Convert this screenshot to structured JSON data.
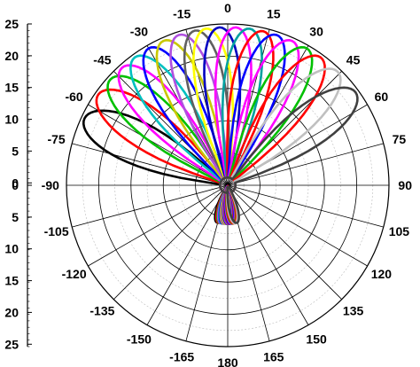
{
  "chart_data": {
    "type": "polar-line",
    "title": "",
    "radial_axis": {
      "range": [
        0,
        25
      ],
      "tick_labels": [
        "25",
        "20",
        "15",
        "10",
        "5",
        "0",
        "0",
        "5",
        "10",
        "15",
        "20",
        "25"
      ]
    },
    "angular_axis": {
      "labels": [
        "0",
        "15",
        "30",
        "45",
        "60",
        "75",
        "90",
        "105",
        "120",
        "135",
        "150",
        "165",
        "180",
        "-165",
        "-150",
        "-135",
        "-120",
        "-105",
        "-90",
        "-75",
        "-60",
        "-45",
        "-30",
        "-15"
      ],
      "grid": true
    },
    "series": [
      {
        "color": "#000000",
        "steer_deg": -65,
        "peak": 24.5,
        "back": 6
      },
      {
        "color": "#ff0000",
        "steer_deg": -55,
        "peak": 24.5,
        "back": 6
      },
      {
        "color": "#00c000",
        "steer_deg": -48,
        "peak": 24.5,
        "back": 6
      },
      {
        "color": "#ff00ff",
        "steer_deg": -42,
        "peak": 24.5,
        "back": 6
      },
      {
        "color": "#00c0c0",
        "steer_deg": -36,
        "peak": 24.5,
        "back": 6
      },
      {
        "color": "#0000ff",
        "steer_deg": -30,
        "peak": 24.5,
        "back": 6
      },
      {
        "color": "#c8c800",
        "steer_deg": -24,
        "peak": 24.5,
        "back": 6
      },
      {
        "color": "#b050e0",
        "steer_deg": -18,
        "peak": 24.5,
        "back": 6
      },
      {
        "color": "#606060",
        "steer_deg": -12,
        "peak": 24.5,
        "back": 6
      },
      {
        "color": "#ffff00",
        "steer_deg": -8,
        "peak": 24.5,
        "back": 6
      },
      {
        "color": "#0000c0",
        "steer_deg": -3,
        "peak": 24.5,
        "back": 6
      },
      {
        "color": "#ff00ff",
        "steer_deg": 3,
        "peak": 24.5,
        "back": 6
      },
      {
        "color": "#00a0a0",
        "steer_deg": 8,
        "peak": 24.5,
        "back": 6
      },
      {
        "color": "#ff0000",
        "steer_deg": 13,
        "peak": 24.5,
        "back": 6
      },
      {
        "color": "#0000ff",
        "steer_deg": 18,
        "peak": 24.5,
        "back": 6
      },
      {
        "color": "#ff00ff",
        "steer_deg": 24,
        "peak": 24.5,
        "back": 6
      },
      {
        "color": "#00c000",
        "steer_deg": 30,
        "peak": 24.5,
        "back": 6
      },
      {
        "color": "#ff0000",
        "steer_deg": 36,
        "peak": 24.5,
        "back": 6
      },
      {
        "color": "#c0c0c0",
        "steer_deg": 44,
        "peak": 24.5,
        "back": 6
      },
      {
        "color": "#404040",
        "steer_deg": 54,
        "peak": 24.5,
        "back": 6
      }
    ]
  }
}
